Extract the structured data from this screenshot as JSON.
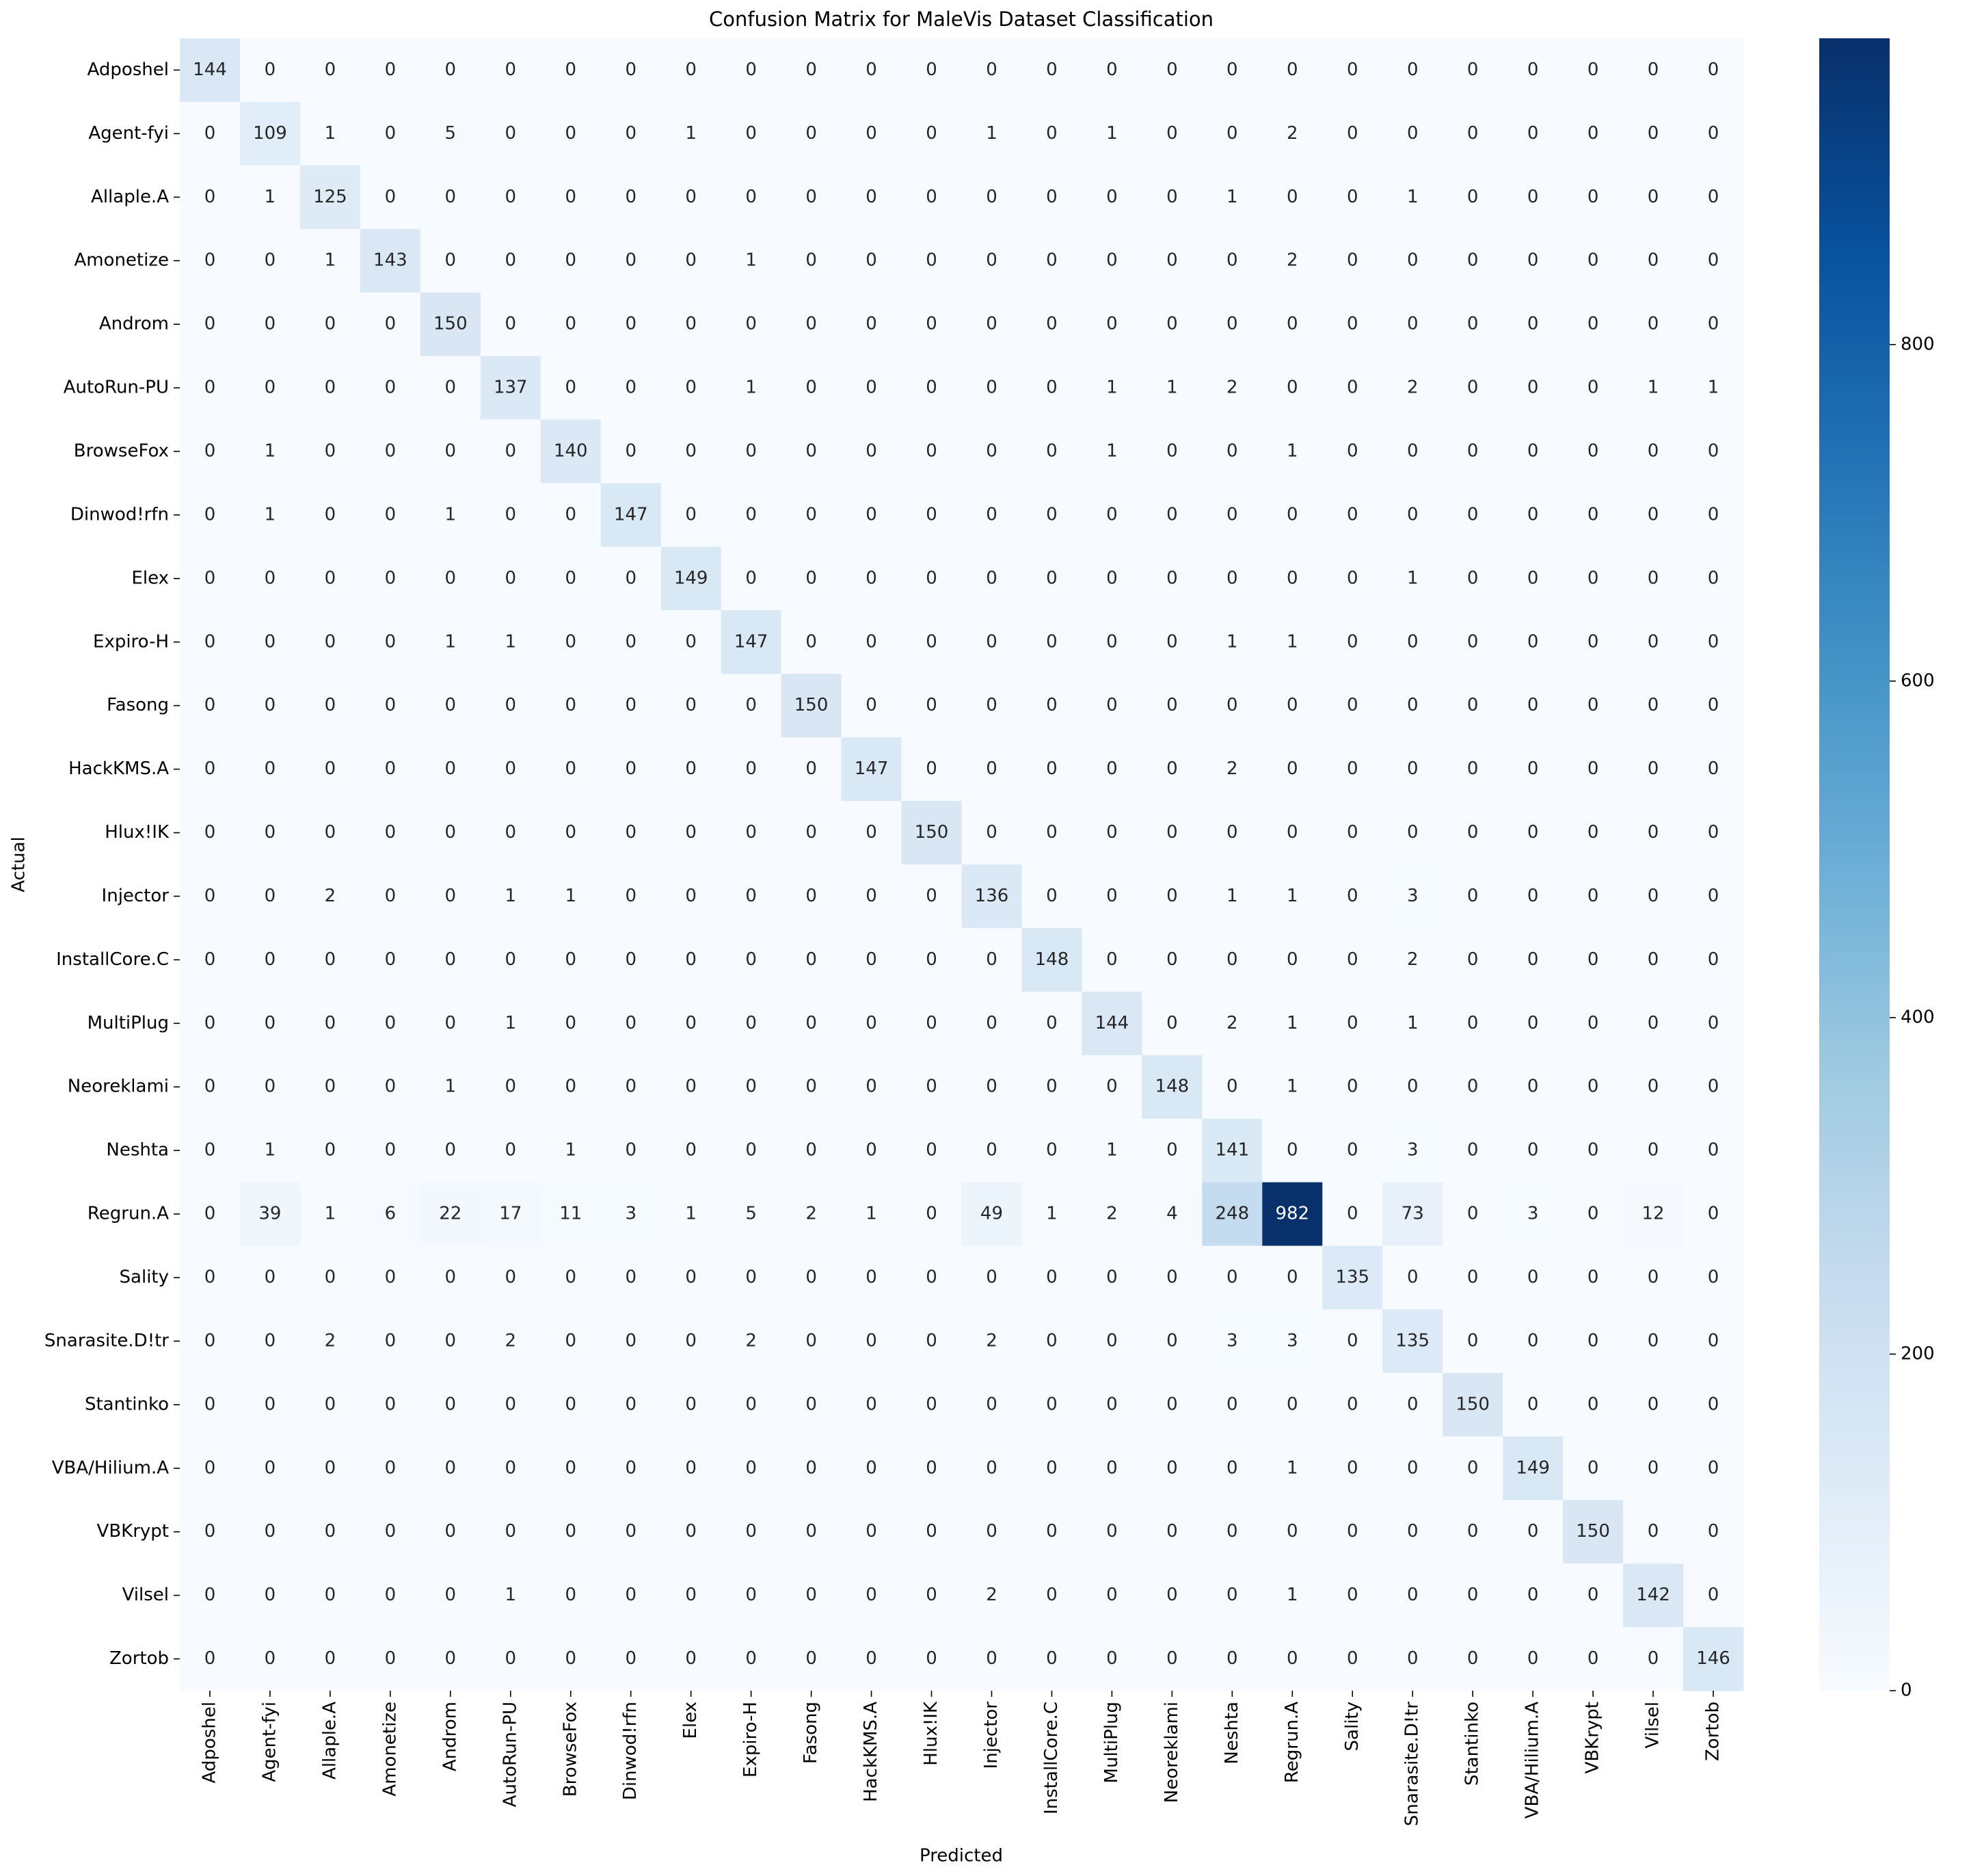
{
  "chart_data": {
    "type": "heatmap",
    "title": "Confusion Matrix for MaleVis Dataset Classification",
    "xlabel": "Predicted",
    "ylabel": "Actual",
    "x_categories": [
      "Adposhel",
      "Agent-fyi",
      "Allaple.A",
      "Amonetize",
      "Androm",
      "AutoRun-PU",
      "BrowseFox",
      "Dinwod!rfn",
      "Elex",
      "Expiro-H",
      "Fasong",
      "HackKMS.A",
      "Hlux!IK",
      "Injector",
      "InstallCore.C",
      "MultiPlug",
      "Neoreklami",
      "Neshta",
      "Regrun.A",
      "Sality",
      "Snarasite.D!tr",
      "Stantinko",
      "VBA/Hilium.A",
      "VBKrypt",
      "Vilsel",
      "Zortob"
    ],
    "y_categories": [
      "Adposhel",
      "Agent-fyi",
      "Allaple.A",
      "Amonetize",
      "Androm",
      "AutoRun-PU",
      "BrowseFox",
      "Dinwod!rfn",
      "Elex",
      "Expiro-H",
      "Fasong",
      "HackKMS.A",
      "Hlux!IK",
      "Injector",
      "InstallCore.C",
      "MultiPlug",
      "Neoreklami",
      "Neshta",
      "Regrun.A",
      "Sality",
      "Snarasite.D!tr",
      "Stantinko",
      "VBA/Hilium.A",
      "VBKrypt",
      "Vilsel",
      "Zortob"
    ],
    "values": [
      [
        144,
        0,
        0,
        0,
        0,
        0,
        0,
        0,
        0,
        0,
        0,
        0,
        0,
        0,
        0,
        0,
        0,
        0,
        0,
        0,
        0,
        0,
        0,
        0,
        0,
        0
      ],
      [
        0,
        109,
        1,
        0,
        5,
        0,
        0,
        0,
        1,
        0,
        0,
        0,
        0,
        1,
        0,
        1,
        0,
        0,
        2,
        0,
        0,
        0,
        0,
        0,
        0,
        0
      ],
      [
        0,
        1,
        125,
        0,
        0,
        0,
        0,
        0,
        0,
        0,
        0,
        0,
        0,
        0,
        0,
        0,
        0,
        1,
        0,
        0,
        1,
        0,
        0,
        0,
        0,
        0
      ],
      [
        0,
        0,
        1,
        143,
        0,
        0,
        0,
        0,
        0,
        1,
        0,
        0,
        0,
        0,
        0,
        0,
        0,
        0,
        2,
        0,
        0,
        0,
        0,
        0,
        0,
        0
      ],
      [
        0,
        0,
        0,
        0,
        150,
        0,
        0,
        0,
        0,
        0,
        0,
        0,
        0,
        0,
        0,
        0,
        0,
        0,
        0,
        0,
        0,
        0,
        0,
        0,
        0,
        0
      ],
      [
        0,
        0,
        0,
        0,
        0,
        137,
        0,
        0,
        0,
        1,
        0,
        0,
        0,
        0,
        0,
        1,
        1,
        2,
        0,
        0,
        2,
        0,
        0,
        0,
        1,
        1
      ],
      [
        0,
        1,
        0,
        0,
        0,
        0,
        140,
        0,
        0,
        0,
        0,
        0,
        0,
        0,
        0,
        1,
        0,
        0,
        1,
        0,
        0,
        0,
        0,
        0,
        0,
        0
      ],
      [
        0,
        1,
        0,
        0,
        1,
        0,
        0,
        147,
        0,
        0,
        0,
        0,
        0,
        0,
        0,
        0,
        0,
        0,
        0,
        0,
        0,
        0,
        0,
        0,
        0,
        0
      ],
      [
        0,
        0,
        0,
        0,
        0,
        0,
        0,
        0,
        149,
        0,
        0,
        0,
        0,
        0,
        0,
        0,
        0,
        0,
        0,
        0,
        1,
        0,
        0,
        0,
        0,
        0
      ],
      [
        0,
        0,
        0,
        0,
        1,
        1,
        0,
        0,
        0,
        147,
        0,
        0,
        0,
        0,
        0,
        0,
        0,
        1,
        1,
        0,
        0,
        0,
        0,
        0,
        0,
        0
      ],
      [
        0,
        0,
        0,
        0,
        0,
        0,
        0,
        0,
        0,
        0,
        150,
        0,
        0,
        0,
        0,
        0,
        0,
        0,
        0,
        0,
        0,
        0,
        0,
        0,
        0,
        0
      ],
      [
        0,
        0,
        0,
        0,
        0,
        0,
        0,
        0,
        0,
        0,
        0,
        147,
        0,
        0,
        0,
        0,
        0,
        2,
        0,
        0,
        0,
        0,
        0,
        0,
        0,
        0
      ],
      [
        0,
        0,
        0,
        0,
        0,
        0,
        0,
        0,
        0,
        0,
        0,
        0,
        150,
        0,
        0,
        0,
        0,
        0,
        0,
        0,
        0,
        0,
        0,
        0,
        0,
        0
      ],
      [
        0,
        0,
        2,
        0,
        0,
        1,
        1,
        0,
        0,
        0,
        0,
        0,
        0,
        136,
        0,
        0,
        0,
        1,
        1,
        0,
        3,
        0,
        0,
        0,
        0,
        0
      ],
      [
        0,
        0,
        0,
        0,
        0,
        0,
        0,
        0,
        0,
        0,
        0,
        0,
        0,
        0,
        148,
        0,
        0,
        0,
        0,
        0,
        2,
        0,
        0,
        0,
        0,
        0
      ],
      [
        0,
        0,
        0,
        0,
        0,
        1,
        0,
        0,
        0,
        0,
        0,
        0,
        0,
        0,
        0,
        144,
        0,
        2,
        1,
        0,
        1,
        0,
        0,
        0,
        0,
        0
      ],
      [
        0,
        0,
        0,
        0,
        1,
        0,
        0,
        0,
        0,
        0,
        0,
        0,
        0,
        0,
        0,
        0,
        148,
        0,
        1,
        0,
        0,
        0,
        0,
        0,
        0,
        0
      ],
      [
        0,
        1,
        0,
        0,
        0,
        0,
        1,
        0,
        0,
        0,
        0,
        0,
        0,
        0,
        0,
        1,
        0,
        141,
        0,
        0,
        3,
        0,
        0,
        0,
        0,
        0
      ],
      [
        0,
        39,
        1,
        6,
        22,
        17,
        11,
        3,
        1,
        5,
        2,
        1,
        0,
        49,
        1,
        2,
        4,
        248,
        982,
        0,
        73,
        0,
        3,
        0,
        12,
        0
      ],
      [
        0,
        0,
        0,
        0,
        0,
        0,
        0,
        0,
        0,
        0,
        0,
        0,
        0,
        0,
        0,
        0,
        0,
        0,
        0,
        135,
        0,
        0,
        0,
        0,
        0,
        0
      ],
      [
        0,
        0,
        2,
        0,
        0,
        2,
        0,
        0,
        0,
        2,
        0,
        0,
        0,
        2,
        0,
        0,
        0,
        3,
        3,
        0,
        135,
        0,
        0,
        0,
        0,
        0
      ],
      [
        0,
        0,
        0,
        0,
        0,
        0,
        0,
        0,
        0,
        0,
        0,
        0,
        0,
        0,
        0,
        0,
        0,
        0,
        0,
        0,
        0,
        150,
        0,
        0,
        0,
        0
      ],
      [
        0,
        0,
        0,
        0,
        0,
        0,
        0,
        0,
        0,
        0,
        0,
        0,
        0,
        0,
        0,
        0,
        0,
        0,
        1,
        0,
        0,
        0,
        149,
        0,
        0,
        0
      ],
      [
        0,
        0,
        0,
        0,
        0,
        0,
        0,
        0,
        0,
        0,
        0,
        0,
        0,
        0,
        0,
        0,
        0,
        0,
        0,
        0,
        0,
        0,
        0,
        150,
        0,
        0
      ],
      [
        0,
        0,
        0,
        0,
        0,
        1,
        0,
        0,
        0,
        0,
        0,
        0,
        0,
        2,
        0,
        0,
        0,
        0,
        1,
        0,
        0,
        0,
        0,
        0,
        142,
        0
      ],
      [
        0,
        0,
        0,
        0,
        0,
        0,
        0,
        0,
        0,
        0,
        0,
        0,
        0,
        0,
        0,
        0,
        0,
        0,
        0,
        0,
        0,
        0,
        0,
        0,
        0,
        146
      ]
    ],
    "clim": [
      0,
      982
    ],
    "colorbar_ticks": [
      0,
      200,
      400,
      600,
      800
    ],
    "colormap": [
      "#f7fbff",
      "#deebf7",
      "#c6dbef",
      "#9ecae1",
      "#6baed6",
      "#4292c6",
      "#2171b5",
      "#08519c",
      "#08306b"
    ]
  }
}
